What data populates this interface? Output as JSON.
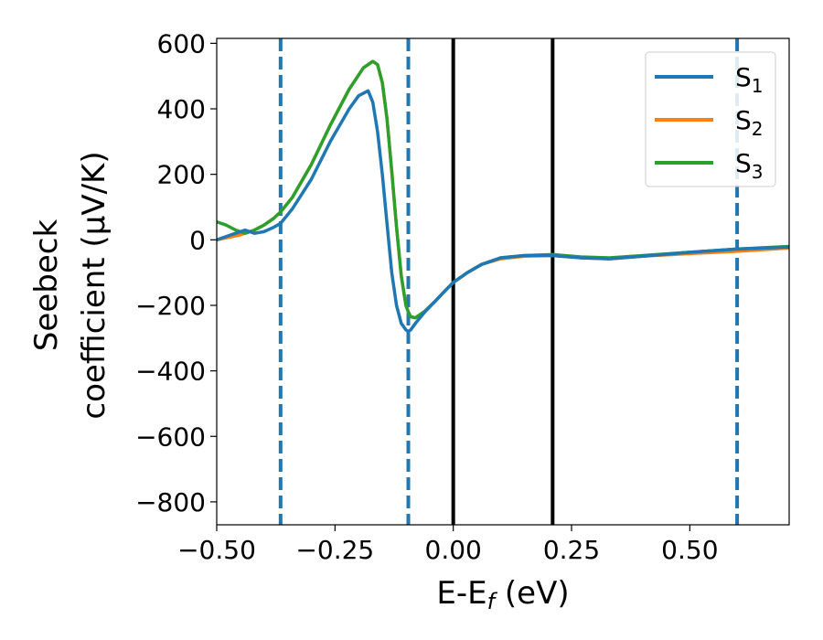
{
  "chart_data": {
    "type": "line",
    "xlabel": "E-E",
    "xlabel_sub": "f",
    "xlabel_unit": " (eV)",
    "ylabel_line1": "Seebeck",
    "ylabel_line2": "coefficient  (μV/K)",
    "xlim": [
      -0.5,
      0.71
    ],
    "ylim": [
      -870,
      615
    ],
    "xticks": [
      -0.5,
      -0.25,
      0.0,
      0.25,
      0.5
    ],
    "xtick_labels": [
      "−0.50",
      "−0.25",
      "0.00",
      "0.25",
      "0.50"
    ],
    "yticks": [
      600,
      400,
      200,
      0,
      -200,
      -400,
      -600,
      -800
    ],
    "ytick_labels": [
      "600",
      "400",
      "200",
      "0",
      "−200",
      "−400",
      "−600",
      "−800"
    ],
    "legend_position": "top-right",
    "grid": false,
    "vlines": [
      {
        "x": -0.365,
        "style": "dashed",
        "color": "#1f77b4"
      },
      {
        "x": -0.095,
        "style": "dashed",
        "color": "#1f77b4"
      },
      {
        "x": 0.0,
        "style": "solid",
        "color": "#000000"
      },
      {
        "x": 0.21,
        "style": "solid",
        "color": "#000000"
      },
      {
        "x": 0.6,
        "style": "dashed",
        "color": "#1f77b4"
      }
    ],
    "series": [
      {
        "name": "S",
        "name_sub": "1",
        "color": "#1f77b4",
        "x": [
          -0.5,
          -0.47,
          -0.44,
          -0.42,
          -0.4,
          -0.38,
          -0.365,
          -0.34,
          -0.3,
          -0.26,
          -0.22,
          -0.2,
          -0.18,
          -0.17,
          -0.16,
          -0.15,
          -0.14,
          -0.13,
          -0.12,
          -0.11,
          -0.1,
          -0.095,
          -0.09,
          -0.08,
          -0.06,
          -0.04,
          -0.02,
          0.0,
          0.03,
          0.06,
          0.1,
          0.15,
          0.21,
          0.27,
          0.33,
          0.4,
          0.5,
          0.6,
          0.71
        ],
        "y": [
          0,
          15,
          30,
          20,
          25,
          38,
          50,
          95,
          185,
          300,
          400,
          440,
          455,
          420,
          330,
          200,
          50,
          -100,
          -200,
          -255,
          -275,
          -280,
          -275,
          -255,
          -220,
          -190,
          -160,
          -130,
          -100,
          -75,
          -55,
          -48,
          -48,
          -55,
          -58,
          -50,
          -38,
          -28,
          -22
        ]
      },
      {
        "name": "S",
        "name_sub": "2",
        "color": "#ff7f0e",
        "x": [
          -0.5,
          -0.45,
          -0.42,
          -0.4,
          -0.38,
          -0.365,
          -0.34,
          -0.3,
          -0.26,
          -0.22,
          -0.19,
          -0.17,
          -0.16,
          -0.15,
          -0.14,
          -0.13,
          -0.12,
          -0.11,
          -0.1,
          -0.095,
          -0.09,
          -0.08,
          -0.06,
          -0.04,
          -0.02,
          0.0,
          0.03,
          0.06,
          0.1,
          0.15,
          0.21,
          0.27,
          0.33,
          0.4,
          0.5,
          0.6,
          0.71
        ],
        "y": [
          0,
          15,
          30,
          45,
          65,
          85,
          130,
          230,
          350,
          460,
          525,
          545,
          535,
          480,
          370,
          210,
          40,
          -110,
          -200,
          -220,
          -235,
          -238,
          -218,
          -190,
          -160,
          -130,
          -100,
          -75,
          -58,
          -50,
          -48,
          -55,
          -58,
          -50,
          -42,
          -35,
          -25
        ]
      },
      {
        "name": "S",
        "name_sub": "3",
        "color": "#2ca02c",
        "x": [
          -0.5,
          -0.48,
          -0.46,
          -0.44,
          -0.42,
          -0.4,
          -0.38,
          -0.365,
          -0.34,
          -0.3,
          -0.26,
          -0.22,
          -0.19,
          -0.17,
          -0.16,
          -0.15,
          -0.14,
          -0.13,
          -0.12,
          -0.11,
          -0.1,
          -0.095,
          -0.09,
          -0.08,
          -0.06,
          -0.04,
          -0.02,
          0.0,
          0.03,
          0.06,
          0.1,
          0.15,
          0.21,
          0.27,
          0.33,
          0.4,
          0.5,
          0.6,
          0.71
        ],
        "y": [
          55,
          45,
          30,
          20,
          30,
          45,
          65,
          85,
          130,
          230,
          350,
          460,
          525,
          545,
          535,
          480,
          370,
          210,
          40,
          -110,
          -200,
          -220,
          -235,
          -238,
          -218,
          -190,
          -160,
          -130,
          -100,
          -75,
          -55,
          -48,
          -45,
          -52,
          -55,
          -48,
          -38,
          -28,
          -20
        ]
      }
    ]
  }
}
